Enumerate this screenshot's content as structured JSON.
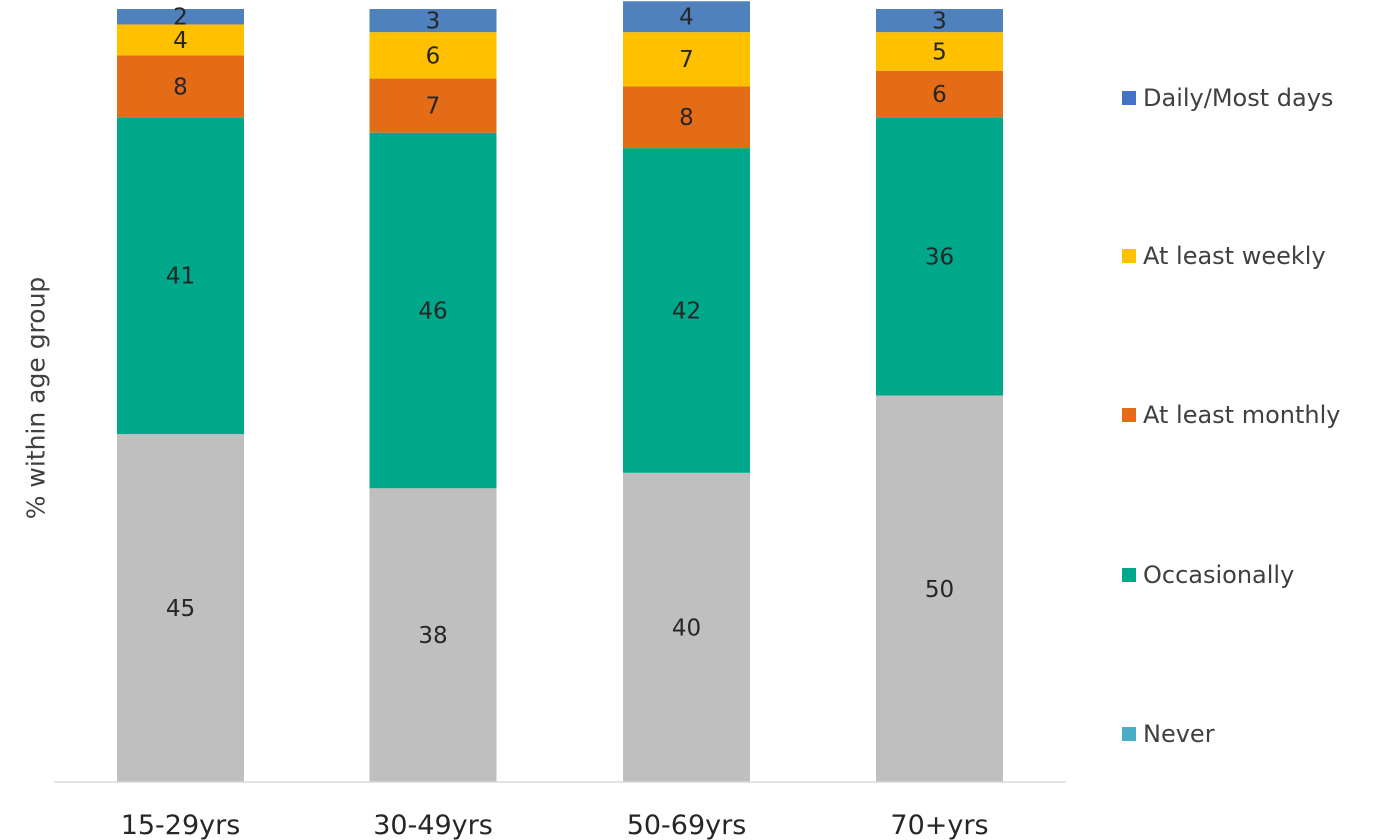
{
  "chart_data": {
    "type": "bar",
    "stacked": true,
    "title": "",
    "xlabel": "",
    "ylabel": "% within age group",
    "ylim": [
      0,
      100
    ],
    "grid": false,
    "legend_position": "right",
    "categories": [
      "15-29yrs",
      "30-49yrs",
      "50-69yrs",
      "70+yrs"
    ],
    "series": [
      {
        "name": "Never",
        "color": "#BFBFBF",
        "values": [
          45,
          38,
          40,
          50
        ]
      },
      {
        "name": "Occasionally",
        "color": "#00A88B",
        "values": [
          41,
          46,
          42,
          36
        ]
      },
      {
        "name": "At least monthly",
        "color": "#E46C17",
        "values": [
          8,
          7,
          8,
          6
        ]
      },
      {
        "name": "At least weekly",
        "color": "#FFC000",
        "values": [
          4,
          6,
          7,
          5
        ]
      },
      {
        "name": "Daily/Most days",
        "color": "#4F81BD",
        "values": [
          2,
          3,
          4,
          3
        ]
      }
    ],
    "legend": [
      {
        "label": "Daily/Most days",
        "color": "#4472C4"
      },
      {
        "label": "At least weekly",
        "color": "#FFC000"
      },
      {
        "label": "At least monthly",
        "color": "#E46C17"
      },
      {
        "label": "Occasionally",
        "color": "#00A88B"
      },
      {
        "label": "Never",
        "color": "#4BACC6"
      }
    ]
  }
}
